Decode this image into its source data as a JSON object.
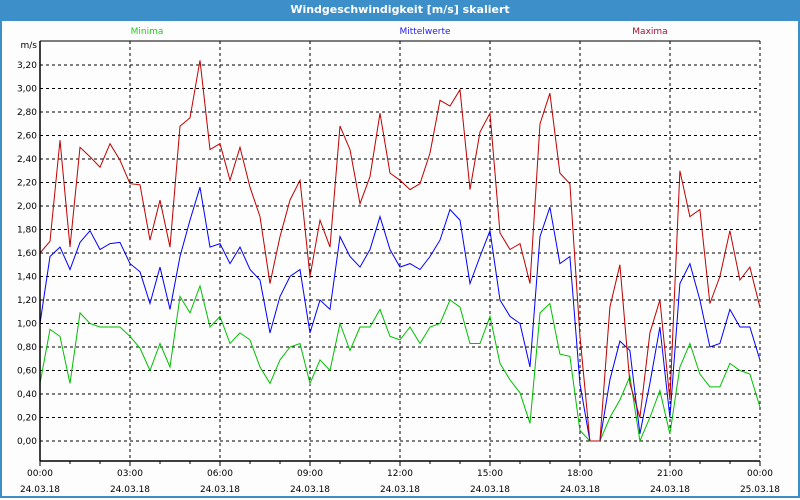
{
  "window": {
    "title": "Windgeschwindigkeit [m/s] skaliert"
  },
  "chart_data": {
    "type": "line",
    "title": "Windgeschwindigkeit [m/s] skaliert",
    "ylabel": "m/s",
    "ylim": [
      0,
      3.2
    ],
    "y_ticks": [
      "0,00",
      "0,20",
      "0,40",
      "0,60",
      "0,80",
      "1,00",
      "1,20",
      "1,40",
      "1,60",
      "1,80",
      "2,00",
      "2,20",
      "2,40",
      "2,60",
      "2,80",
      "3,00",
      "3,20"
    ],
    "x_range_hours": [
      0,
      24
    ],
    "x_start_hours": 0,
    "x_step_hours": 0.3333,
    "x_ticks": [
      {
        "time": "00:00",
        "date": "24.03.18"
      },
      {
        "time": "03:00",
        "date": "24.03.18"
      },
      {
        "time": "06:00",
        "date": "24.03.18"
      },
      {
        "time": "09:00",
        "date": "24.03.18"
      },
      {
        "time": "12:00",
        "date": "24.03.18"
      },
      {
        "time": "15:00",
        "date": "24.03.18"
      },
      {
        "time": "18:00",
        "date": "24.03.18"
      },
      {
        "time": "21:00",
        "date": "24.03.18"
      },
      {
        "time": "00:00",
        "date": "25.03.18"
      }
    ],
    "grid": true,
    "legend_placement": "top",
    "series": [
      {
        "name": "Minima",
        "color": "#00c000",
        "legend_color": "#22cc22",
        "values": [
          0.49,
          0.95,
          0.89,
          0.49,
          1.09,
          1.0,
          0.97,
          0.97,
          0.97,
          0.89,
          0.79,
          0.6,
          0.83,
          0.63,
          1.23,
          1.09,
          1.32,
          0.97,
          1.06,
          0.83,
          0.92,
          0.86,
          0.63,
          0.49,
          0.69,
          0.8,
          0.83,
          0.49,
          0.69,
          0.6,
          1.0,
          0.77,
          0.97,
          0.97,
          1.12,
          0.89,
          0.86,
          0.97,
          0.83,
          0.97,
          1.0,
          1.2,
          1.14,
          0.83,
          0.83,
          1.06,
          0.66,
          0.52,
          0.41,
          0.15,
          1.09,
          1.17,
          0.74,
          0.72,
          0.09,
          0,
          0,
          0.2,
          0.35,
          0.55,
          0,
          0.2,
          0.43,
          0.06,
          0.63,
          0.83,
          0.57,
          0.46,
          0.46,
          0.66,
          0.6,
          0.57,
          0.29
        ]
      },
      {
        "name": "Mittelwerte",
        "color": "#0000ff",
        "legend_color": "#2222ee",
        "values": [
          1.0,
          1.57,
          1.65,
          1.46,
          1.69,
          1.79,
          1.63,
          1.68,
          1.69,
          1.51,
          1.44,
          1.17,
          1.48,
          1.12,
          1.57,
          1.88,
          2.16,
          1.65,
          1.68,
          1.51,
          1.65,
          1.46,
          1.37,
          0.92,
          1.23,
          1.4,
          1.46,
          0.92,
          1.2,
          1.12,
          1.74,
          1.57,
          1.48,
          1.63,
          1.91,
          1.63,
          1.48,
          1.51,
          1.46,
          1.57,
          1.71,
          1.97,
          1.88,
          1.34,
          1.57,
          1.79,
          1.2,
          1.06,
          1.0,
          0.63,
          1.74,
          1.99,
          1.51,
          1.57,
          0.49,
          0,
          0,
          0.52,
          0.85,
          0.77,
          0.06,
          0.49,
          0.97,
          0.2,
          1.34,
          1.51,
          1.2,
          0.8,
          0.83,
          1.12,
          0.97,
          0.97,
          0.69
        ]
      },
      {
        "name": "Maxima",
        "color": "#c00000",
        "legend_color": "#aa1133",
        "values": [
          1.6,
          1.7,
          2.56,
          1.65,
          2.5,
          2.42,
          2.33,
          2.53,
          2.39,
          2.19,
          2.18,
          1.71,
          2.05,
          1.65,
          2.68,
          2.75,
          3.24,
          2.48,
          2.53,
          2.22,
          2.5,
          2.16,
          1.91,
          1.34,
          1.74,
          2.05,
          2.22,
          1.4,
          1.88,
          1.65,
          2.68,
          2.48,
          2.02,
          2.25,
          2.79,
          2.28,
          2.22,
          2.14,
          2.19,
          2.45,
          2.9,
          2.85,
          2.99,
          2.14,
          2.63,
          2.79,
          1.77,
          1.63,
          1.68,
          1.34,
          2.7,
          2.96,
          2.28,
          2.19,
          0.9,
          0,
          0,
          1.14,
          1.5,
          0.49,
          0.2,
          0.92,
          1.2,
          0.35,
          2.3,
          1.91,
          1.97,
          1.17,
          1.4,
          1.79,
          1.37,
          1.48,
          1.14
        ]
      }
    ]
  }
}
